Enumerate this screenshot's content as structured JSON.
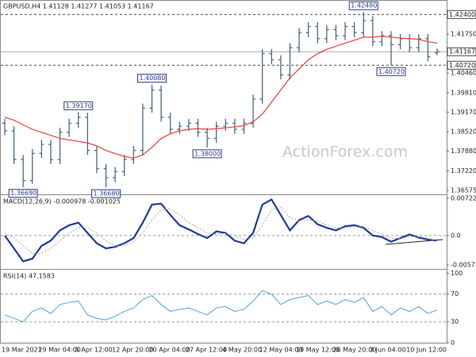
{
  "chart_data": [
    {
      "type": "ohlc",
      "title": "GBPUSD,H4 1.41128 1.41277 1.41053 1.41167",
      "watermark": "ActionForex.com",
      "categories": [
        "19 Mar 2021",
        null,
        null,
        null,
        "29 Mar 04:00",
        null,
        null,
        null,
        "5 Apr 12:00",
        null,
        null,
        null,
        "12 Apr 20:00",
        null,
        null,
        null,
        "20 Apr 04:00",
        null,
        null,
        null,
        "27 Apr 12:00",
        null,
        null,
        null,
        "4 May 20:00",
        null,
        null,
        null,
        "12 May 04:00",
        null,
        null,
        null,
        "19 May 12:00",
        null,
        null,
        null,
        "26 May 20:00",
        null,
        null,
        null,
        "3 Jun 04:00",
        null,
        null,
        null,
        "10 Jun 12:00",
        null,
        null,
        null
      ],
      "open": [
        1.388,
        1.3855,
        1.376,
        1.369,
        1.378,
        1.381,
        1.376,
        1.385,
        1.388,
        1.39,
        1.379,
        1.373,
        1.37,
        1.372,
        1.376,
        1.379,
        1.393,
        1.399,
        1.39,
        1.386,
        1.387,
        1.388,
        1.385,
        1.383,
        1.387,
        1.388,
        1.386,
        1.388,
        1.396,
        1.411,
        1.409,
        1.404,
        1.413,
        1.418,
        1.42,
        1.416,
        1.419,
        1.417,
        1.42,
        1.418,
        1.422,
        1.415,
        1.417,
        1.414,
        1.416,
        1.413,
        1.416,
        1.41128
      ],
      "high": [
        1.3895,
        1.387,
        1.3775,
        1.3795,
        1.3825,
        1.3825,
        1.3865,
        1.3895,
        1.3917,
        1.3915,
        1.3805,
        1.3745,
        1.3735,
        1.3775,
        1.3805,
        1.3945,
        1.4008,
        1.4005,
        1.3915,
        1.3885,
        1.3895,
        1.3895,
        1.3865,
        1.3885,
        1.3895,
        1.3895,
        1.3895,
        1.3975,
        1.4125,
        1.4125,
        1.4105,
        1.4145,
        1.4195,
        1.4215,
        1.4215,
        1.4205,
        1.4205,
        1.4215,
        1.4215,
        1.4248,
        1.4235,
        1.4185,
        1.4185,
        1.4175,
        1.4175,
        1.4175,
        1.4175,
        1.41277
      ],
      "low": [
        1.384,
        1.3745,
        1.3669,
        1.368,
        1.3765,
        1.3745,
        1.3745,
        1.3835,
        1.3865,
        1.3775,
        1.3715,
        1.3668,
        1.3685,
        1.3705,
        1.3745,
        1.3775,
        1.3915,
        1.3885,
        1.3845,
        1.3845,
        1.3855,
        1.3835,
        1.38,
        1.3815,
        1.3855,
        1.3845,
        1.3845,
        1.3865,
        1.3945,
        1.4075,
        1.4025,
        1.4025,
        1.4115,
        1.4165,
        1.4145,
        1.4145,
        1.4155,
        1.4155,
        1.4165,
        1.4165,
        1.4135,
        1.4135,
        1.4072,
        1.4125,
        1.4115,
        1.4115,
        1.4085,
        1.41053
      ],
      "close": [
        1.3855,
        1.376,
        1.369,
        1.378,
        1.381,
        1.376,
        1.385,
        1.388,
        1.39,
        1.379,
        1.373,
        1.37,
        1.372,
        1.376,
        1.379,
        1.393,
        1.399,
        1.39,
        1.386,
        1.387,
        1.388,
        1.385,
        1.383,
        1.387,
        1.388,
        1.386,
        1.388,
        1.396,
        1.411,
        1.409,
        1.404,
        1.413,
        1.418,
        1.42,
        1.416,
        1.419,
        1.417,
        1.42,
        1.418,
        1.422,
        1.415,
        1.417,
        1.414,
        1.416,
        1.413,
        1.416,
        1.41,
        1.41167
      ],
      "color": "#4b6a85",
      "ma_values": [
        1.39,
        1.389,
        1.3875,
        1.386,
        1.385,
        1.384,
        1.383,
        1.3825,
        1.382,
        1.3815,
        1.3805,
        1.379,
        1.378,
        1.377,
        1.3765,
        1.3775,
        1.38,
        1.383,
        1.3845,
        1.3855,
        1.386,
        1.3862,
        1.386,
        1.3862,
        1.3865,
        1.3868,
        1.3872,
        1.3885,
        1.391,
        1.395,
        1.399,
        1.403,
        1.406,
        1.409,
        1.411,
        1.4125,
        1.4135,
        1.4145,
        1.4155,
        1.4165,
        1.4165,
        1.4168,
        1.4165,
        1.4162,
        1.416,
        1.4158,
        1.415,
        1.4145
      ],
      "ma_color": "#e8403a",
      "ylim": [
        1.3642,
        1.4288
      ],
      "yticks": [
        {
          "value": 1.4175,
          "label": "1.41750"
        },
        {
          "value": 1.4046,
          "label": "1.40460"
        },
        {
          "value": 1.3981,
          "label": "1.39810"
        },
        {
          "value": 1.3917,
          "label": "1.39170"
        },
        {
          "value": 1.3852,
          "label": "1.38520"
        },
        {
          "value": 1.3788,
          "label": "1.37880"
        },
        {
          "value": 1.3722,
          "label": "1.37220"
        },
        {
          "value": 1.36575,
          "label": "1.36575"
        }
      ],
      "levels": [
        {
          "value": 1.424,
          "label": "1.42400"
        },
        {
          "value": 1.4072,
          "label": "1.40720"
        }
      ],
      "last_price": 1.41167,
      "annotations": [
        {
          "value": 1.4248,
          "label": "1.42480",
          "at": "high"
        },
        {
          "value": 1.3917,
          "label": "1.39170",
          "at": "high"
        },
        {
          "value": 1.4008,
          "label": "1.40080",
          "at": "high"
        },
        {
          "value": 1.38,
          "label": "1.38000",
          "at": "low"
        },
        {
          "value": 1.4072,
          "label": "1.40720",
          "at": "low"
        },
        {
          "value": 1.3669,
          "label": "1.36690",
          "at": "low"
        },
        {
          "value": 1.3668,
          "label": "1.36680",
          "at": "low"
        }
      ]
    },
    {
      "type": "line",
      "title": "MACD(12,26,9) -0.000978 -0.001025",
      "series": [
        {
          "color": "#1f3a9e",
          "values": [
            0.0,
            -0.0025,
            -0.005,
            -0.0045,
            -0.002,
            -0.001,
            0.001,
            0.002,
            0.0025,
            0.0005,
            -0.0015,
            -0.0025,
            -0.0022,
            -0.0015,
            -0.0005,
            0.0025,
            0.006,
            0.0062,
            0.004,
            0.002,
            0.0012,
            0.0003,
            -0.0005,
            0.0008,
            0.0005,
            -0.001,
            -0.0015,
            0.0005,
            0.006,
            0.007,
            0.004,
            0.001,
            0.003,
            0.0038,
            0.0022,
            0.0015,
            0.001,
            0.0018,
            0.002,
            0.0015,
            0.0,
            -0.0003,
            -0.0012,
            -0.0005,
            0.0002,
            -0.0004,
            -0.0008,
            -0.000978
          ]
        },
        {
          "color": "#aaaaaa",
          "values": [
            0.0005,
            -0.0005,
            -0.002,
            -0.0035,
            -0.0035,
            -0.0025,
            -0.001,
            0.0005,
            0.0015,
            0.0015,
            0.0005,
            -0.001,
            -0.002,
            -0.002,
            -0.0012,
            0.0005,
            0.003,
            0.005,
            0.0052,
            0.004,
            0.0025,
            0.0015,
            0.0005,
            0.0003,
            0.0004,
            0.0,
            -0.0008,
            -0.0005,
            0.002,
            0.005,
            0.0055,
            0.0035,
            0.0028,
            0.003,
            0.0028,
            0.002,
            0.0015,
            0.0015,
            0.0017,
            0.0017,
            0.001,
            0.0002,
            -0.0005,
            -0.0006,
            -0.0002,
            -0.0002,
            -0.0005,
            -0.001025
          ]
        }
      ],
      "ylim": [
        -0.00664,
        0.00784
      ],
      "yticks": [
        0.007227,
        {
          "value": 0,
          "label": "0.0"
        },
        -0.005714
      ],
      "levels": [
        0
      ]
    },
    {
      "type": "line",
      "title": "RSI(14) 47.1583",
      "series": [
        {
          "color": "#4aa3df",
          "values": [
            40,
            35,
            30,
            45,
            50,
            42,
            55,
            58,
            60,
            40,
            35,
            33,
            38,
            45,
            50,
            62,
            68,
            55,
            45,
            48,
            50,
            45,
            40,
            50,
            52,
            45,
            48,
            60,
            75,
            70,
            55,
            62,
            65,
            68,
            55,
            60,
            55,
            62,
            58,
            65,
            45,
            52,
            40,
            50,
            45,
            52,
            42,
            47.1583
          ]
        }
      ],
      "ylim": [
        0,
        105
      ],
      "yticks": [
        100,
        70,
        30,
        0
      ],
      "levels": [
        70,
        30
      ]
    }
  ]
}
